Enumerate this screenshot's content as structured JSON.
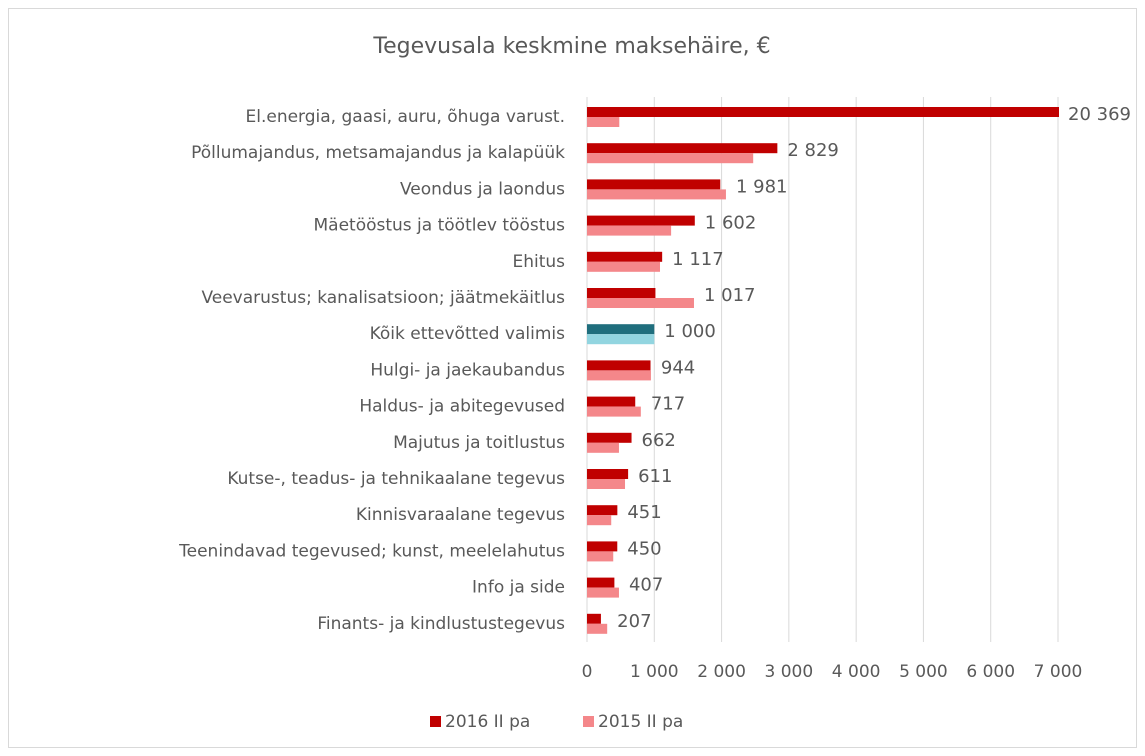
{
  "chart_data": {
    "type": "hbar",
    "title": "Tegevusala keskmine maksehäire, €",
    "categories": [
      "El.energia, gaasi, auru, õhuga varust.",
      "Põllumajandus, metsamajandus ja kalapüük",
      "Veondus ja laondus",
      "Mäetööstus ja töötlev tööstus",
      "Ehitus",
      "Veevarustus; kanalisatsioon; jäätmekäitlus",
      "Kõik ettevõtted valimis",
      "Hulgi- ja jaekaubandus",
      "Haldus- ja abitegevused",
      "Majutus ja toitlustus",
      "Kutse-, teadus- ja tehnikaalane tegevus",
      "Kinnisvaraalane tegevus",
      "Teenindavad tegevused; kunst, meelelahutus",
      "Info ja side",
      "Finants- ja kindlustustegevus"
    ],
    "series": [
      {
        "name": "2016 II pa",
        "color": "#c00000",
        "colors": [
          "#c00000",
          "#c00000",
          "#c00000",
          "#c00000",
          "#c00000",
          "#c00000",
          "#1f6e7d",
          "#c00000",
          "#c00000",
          "#c00000",
          "#c00000",
          "#c00000",
          "#c00000",
          "#c00000",
          "#c00000"
        ],
        "values": [
          20369,
          2829,
          1981,
          1602,
          1117,
          1017,
          1000,
          944,
          717,
          662,
          611,
          451,
          450,
          407,
          207
        ],
        "value_labels": [
          "20 369",
          "2 829",
          "1 981",
          "1 602",
          "1 117",
          "1 017",
          "1 000",
          "944",
          "717",
          "662",
          "611",
          "451",
          "450",
          "407",
          "207"
        ]
      },
      {
        "name": "2015 II pa",
        "color": "#f4878a",
        "colors": [
          "#f4878a",
          "#f4878a",
          "#f4878a",
          "#f4878a",
          "#f4878a",
          "#f4878a",
          "#92d5e0",
          "#f4878a",
          "#f4878a",
          "#f4878a",
          "#f4878a",
          "#f4878a",
          "#f4878a",
          "#f4878a",
          "#f4878a"
        ],
        "values": [
          480,
          2470,
          2065,
          1250,
          1085,
          1590,
          1000,
          950,
          800,
          475,
          565,
          360,
          390,
          475,
          300
        ]
      }
    ],
    "xlim": [
      0,
      7000
    ],
    "xticks": [
      0,
      {
        "value": 1000,
        "label": "1 000"
      },
      {
        "value": 2000,
        "label": "2 000"
      },
      {
        "value": 3000,
        "label": "3 000"
      },
      {
        "value": 4000,
        "label": "4 000"
      },
      {
        "value": 5000,
        "label": "5 000"
      },
      {
        "value": 6000,
        "label": "6 000"
      },
      {
        "value": 7000,
        "label": "7 000"
      }
    ],
    "grid": true,
    "legend": "bottom"
  }
}
